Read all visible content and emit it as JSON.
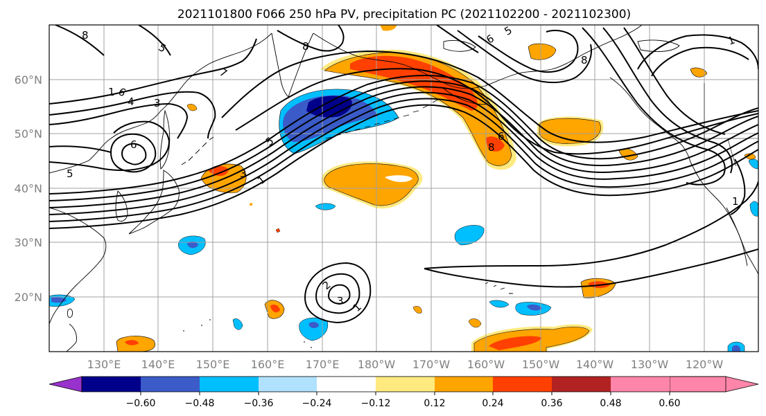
{
  "title": "2021101800 F066 250 hPa PV, precipitation PC (2021102200 - 2021102300)",
  "lat_labels": [
    "60°N",
    "50°N",
    "40°N",
    "30°N",
    "20°N"
  ],
  "lon_labels": [
    "130°E",
    "140°E",
    "150°E",
    "160°E",
    "170°E",
    "180°W",
    "170°W",
    "160°W",
    "150°W",
    "140°W",
    "130°W",
    "120°W"
  ],
  "colorbar": {
    "ticks": [
      "−0.60",
      "−0.48",
      "−0.36",
      "−0.24",
      "−0.12",
      "0.12",
      "0.24",
      "0.36",
      "0.48",
      "0.60"
    ],
    "colors": [
      "#9932cc",
      "#00008b",
      "#3a5bc8",
      "#00bfff",
      "#b0e2ff",
      "#ffffff",
      "#ffea80",
      "#ffa500",
      "#ff4000",
      "#b22222",
      "#ff85aa"
    ]
  },
  "contour_labels": [
    "8",
    "5",
    "6",
    "4",
    "3",
    "1",
    "6",
    "5",
    "3",
    "1",
    "5",
    "2",
    "3",
    "1",
    "7",
    "8",
    "6",
    "5",
    "1",
    "8",
    "6",
    "8",
    "1"
  ]
}
